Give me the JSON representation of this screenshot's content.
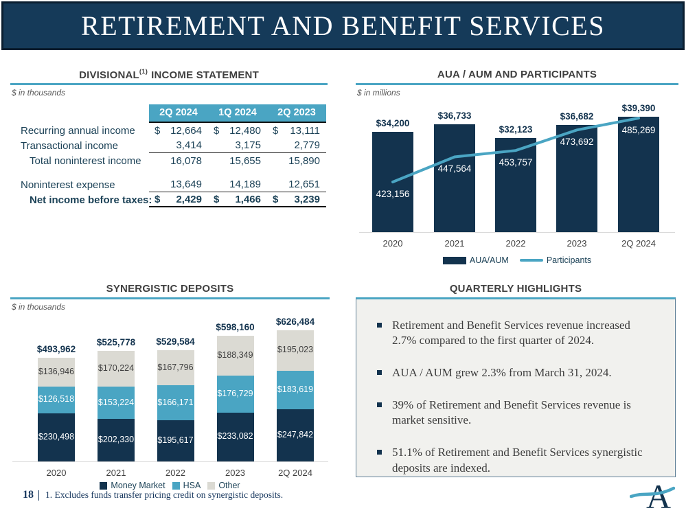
{
  "header": {
    "title": "RETIREMENT AND BENEFIT SERVICES"
  },
  "colors": {
    "navy": "#13334E",
    "teal": "#4AA5C3",
    "gray": "#DBDAD3",
    "banner": "#153A59",
    "banner_border": "#0A1E30",
    "title_text": "#3F3F3F",
    "table_text": "#1C4257",
    "axis_line": "#D9D9D9",
    "box_bg": "#F1F1EE",
    "box_border": "#5D7E96",
    "footnote": "#17375E",
    "white": "#FFFFFF"
  },
  "income_statement": {
    "title_main": "DIVISIONAL",
    "title_sup": "(1)",
    "title_rest": "INCOME STATEMENT",
    "units": "$ in thousands",
    "columns": [
      "2Q 2024",
      "1Q 2024",
      "2Q 2023"
    ],
    "rows": [
      {
        "label": "Recurring annual income",
        "dollar": true,
        "values": [
          "12,664",
          "12,480",
          "13,111"
        ]
      },
      {
        "label": "Transactional income",
        "values": [
          "3,414",
          "3,175",
          "2,779"
        ],
        "rule": "thin"
      },
      {
        "label": "Total noninterest income",
        "indent": true,
        "values": [
          "16,078",
          "15,655",
          "15,890"
        ]
      },
      {
        "spacer": true
      },
      {
        "label": "Noninterest expense",
        "values": [
          "13,649",
          "14,189",
          "12,651"
        ],
        "rule": "thin"
      },
      {
        "label": "Net income before taxes:",
        "indent": true,
        "bold": true,
        "dollar": true,
        "values": [
          "2,429",
          "1,466",
          "3,239"
        ],
        "rule": "thick"
      }
    ]
  },
  "highlights": {
    "title": "QUARTERLY HIGHLIGHTS",
    "items": [
      "Retirement and Benefit Services revenue increased 2.7% compared to the first quarter of 2024.",
      "AUA / AUM grew 2.3% from March 31, 2024.",
      "39% of Retirement and Benefit Services revenue is market sensitive.",
      "51.1% of Retirement and Benefit Services synergistic deposits are indexed."
    ]
  },
  "footer": {
    "page_number": "18",
    "footnote": "1. Excludes funds transfer pricing credit on synergistic deposits.",
    "logo_letter": "A"
  },
  "chart_data": [
    {
      "id": "aua_aum_participants",
      "type": "bar+line",
      "title": "AUA / AUM AND PARTICIPANTS",
      "units": "$ in millions",
      "categories": [
        "2020",
        "2021",
        "2022",
        "2023",
        "2Q 2024"
      ],
      "series": [
        {
          "name": "AUA/AUM",
          "type": "bar",
          "values": [
            34200,
            36733,
            32123,
            36682,
            39390
          ],
          "labels": [
            "$34,200",
            "$36,733",
            "$32,123",
            "$36,682",
            "$39,390"
          ]
        },
        {
          "name": "Participants",
          "type": "line",
          "values": [
            423156,
            447564,
            453757,
            473692,
            485269
          ],
          "labels": [
            "423,156",
            "447,564",
            "453,757",
            "473,692",
            "485,269"
          ]
        }
      ],
      "legend": [
        "AUA/AUM",
        "Participants"
      ],
      "legend_position": "bottom",
      "grid": false,
      "value_labels": "bar totals above bars, participants inside bars"
    },
    {
      "id": "synergistic_deposits",
      "type": "stacked-bar",
      "title": "SYNERGISTIC DEPOSITS",
      "units": "$ in thousands",
      "categories": [
        "2020",
        "2021",
        "2022",
        "2023",
        "2Q 2024"
      ],
      "series": [
        {
          "name": "Money Market",
          "color_key": "navy",
          "values": [
            230498,
            202330,
            195617,
            233082,
            247842
          ],
          "labels": [
            "$230,498",
            "$202,330",
            "$195,617",
            "$233,082",
            "$247,842"
          ]
        },
        {
          "name": "HSA",
          "color_key": "teal",
          "values": [
            126518,
            153224,
            166171,
            176729,
            183619
          ],
          "labels": [
            "$126,518",
            "$153,224",
            "$166,171",
            "$176,729",
            "$183,619"
          ]
        },
        {
          "name": "Other",
          "color_key": "gray",
          "values": [
            136946,
            170224,
            167796,
            188349,
            195023
          ],
          "labels": [
            "$136,946",
            "$170,224",
            "$167,796",
            "$188,349",
            "$195,023"
          ]
        }
      ],
      "totals": [
        493962,
        525778,
        529584,
        598160,
        626484
      ],
      "totals_labels": [
        "$493,962",
        "$525,778",
        "$529,584",
        "$598,160",
        "$626,484"
      ],
      "legend": [
        "Money Market",
        "HSA",
        "Other"
      ],
      "legend_position": "bottom",
      "grid": false
    }
  ]
}
